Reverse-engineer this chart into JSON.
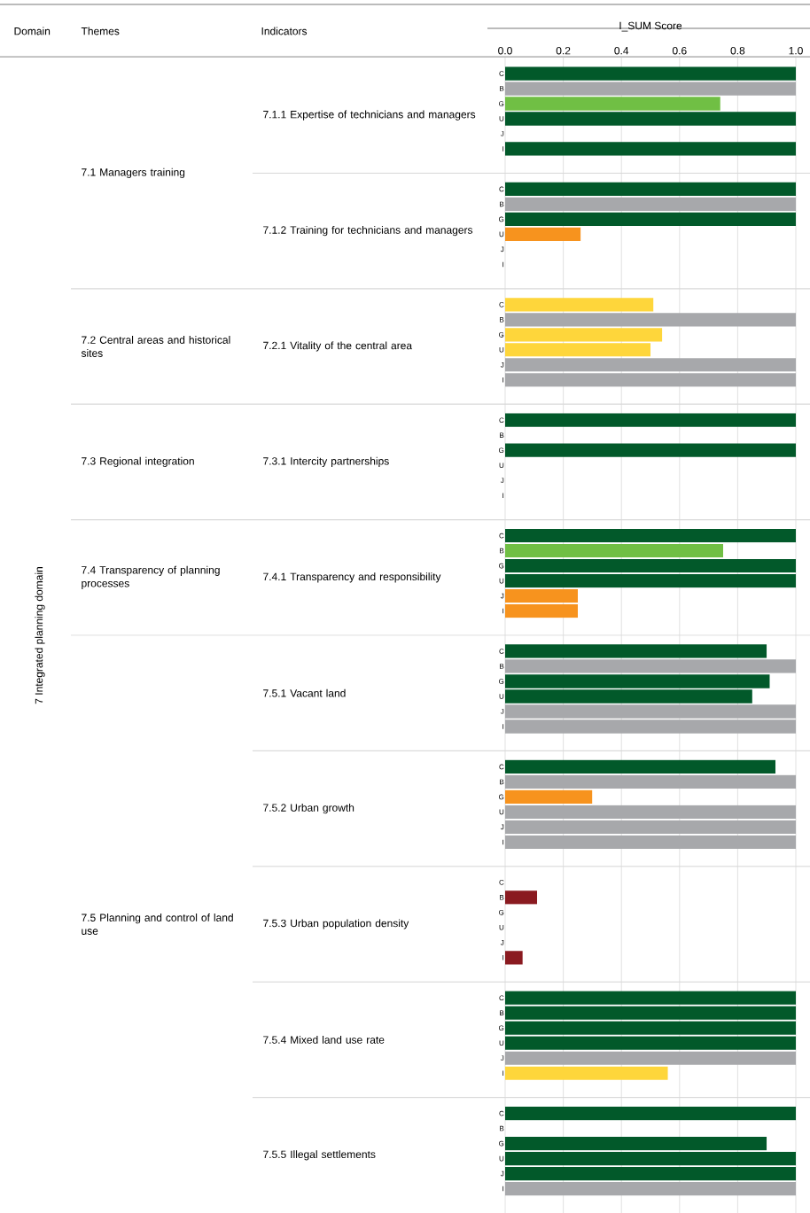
{
  "chart_data": [
    {
      "type": "bar",
      "orientation": "horizontal",
      "ylabel": "7.1.1 Expertise of technicians and managers",
      "xlabel": "I_SUM Score",
      "annotations": [
        "Domain",
        "Themes",
        "Indicators",
        "7 Integrated planning domain",
        "7.1 Managers training"
      ],
      "categories": [
        "C",
        "B",
        "G",
        "U",
        "J",
        "I"
      ],
      "values": [
        1.0,
        1.0,
        0.74,
        1.0,
        null,
        1.0
      ],
      "colors": [
        "#02592a",
        "#a7a8ab",
        "#70bf44",
        "#02592a",
        null,
        "#02592a"
      ],
      "xlim": [
        0,
        1
      ],
      "xticks": [
        {
          "value": 0,
          "label": "0.0"
        },
        0.2,
        0.4,
        0.6,
        0.8,
        {
          "value": 1,
          "label": "1.0"
        }
      ],
      "grid": "x"
    },
    {
      "type": "bar",
      "orientation": "horizontal",
      "ylabel": "7.1.2 Training for technicians and managers",
      "categories": [
        "C",
        "B",
        "G",
        "U",
        "J",
        "I"
      ],
      "values": [
        1.0,
        1.0,
        1.0,
        0.26,
        null,
        null
      ],
      "colors": [
        "#02592a",
        "#a7a8ab",
        "#02592a",
        "#f7931e",
        null,
        null
      ],
      "xlim": [
        0,
        1
      ],
      "xticks": [
        0,
        0.2,
        0.4,
        0.6,
        0.8,
        1
      ],
      "grid": "x",
      "tick_labels": "y"
    },
    {
      "type": "bar",
      "orientation": "horizontal",
      "ylabel": "7.2.1 Vitality of the central area",
      "annotations": [
        "7.2 Central areas and historical sites"
      ],
      "categories": [
        "C",
        "B",
        "G",
        "U",
        "J",
        "I"
      ],
      "values": [
        0.51,
        1.0,
        0.54,
        0.5,
        1.0,
        1.0
      ],
      "colors": [
        "#fed63b",
        "#a7a8ab",
        "#fed63b",
        "#fed63b",
        "#a7a8ab",
        "#a7a8ab"
      ],
      "xlim": [
        0,
        1
      ],
      "xticks": [
        0,
        0.2,
        0.4,
        0.6,
        0.8,
        1
      ],
      "grid": "x",
      "tick_labels": "y"
    },
    {
      "type": "bar",
      "orientation": "horizontal",
      "ylabel": "7.3.1 Intercity partnerships",
      "annotations": [
        "7.3 Regional integration"
      ],
      "categories": [
        "C",
        "B",
        "G",
        "U",
        "J",
        "I"
      ],
      "values": [
        1.0,
        null,
        1.0,
        null,
        null,
        null
      ],
      "colors": [
        "#02592a",
        null,
        "#02592a",
        null,
        null,
        null
      ],
      "xlim": [
        0,
        1
      ],
      "xticks": [
        0,
        0.2,
        0.4,
        0.6,
        0.8,
        1
      ],
      "grid": "x",
      "tick_labels": "y"
    },
    {
      "type": "bar",
      "orientation": "horizontal",
      "ylabel": "7.4.1 Transparency and responsibility",
      "annotations": [
        "7.4 Transparency of planning processes"
      ],
      "categories": [
        "C",
        "B",
        "G",
        "U",
        "J",
        "I"
      ],
      "values": [
        1.0,
        0.75,
        1.0,
        1.0,
        0.25,
        0.25
      ],
      "colors": [
        "#02592a",
        "#70bf44",
        "#02592a",
        "#02592a",
        "#f7931e",
        "#f7931e"
      ],
      "xlim": [
        0,
        1
      ],
      "xticks": [
        0,
        0.2,
        0.4,
        0.6,
        0.8,
        1
      ],
      "grid": "x",
      "tick_labels": "y"
    },
    {
      "type": "bar",
      "orientation": "horizontal",
      "ylabel": "7.5.1 Vacant land",
      "annotations": [
        "7.5 Planning and control of land use"
      ],
      "categories": [
        "C",
        "B",
        "G",
        "U",
        "J",
        "I"
      ],
      "values": [
        0.9,
        1.0,
        0.91,
        0.85,
        1.0,
        1.0
      ],
      "colors": [
        "#02592a",
        "#a7a8ab",
        "#02592a",
        "#02592a",
        "#a7a8ab",
        "#a7a8ab"
      ],
      "xlim": [
        0,
        1
      ],
      "xticks": [
        0,
        0.2,
        0.4,
        0.6,
        0.8,
        1
      ],
      "grid": "x",
      "tick_labels": "y"
    },
    {
      "type": "bar",
      "orientation": "horizontal",
      "ylabel": "7.5.2 Urban growth",
      "categories": [
        "C",
        "B",
        "G",
        "U",
        "J",
        "I"
      ],
      "values": [
        0.93,
        1.0,
        0.3,
        1.0,
        1.0,
        1.0
      ],
      "colors": [
        "#02592a",
        "#a7a8ab",
        "#f7931e",
        "#a7a8ab",
        "#a7a8ab",
        "#a7a8ab"
      ],
      "xlim": [
        0,
        1
      ],
      "xticks": [
        0,
        0.2,
        0.4,
        0.6,
        0.8,
        1
      ],
      "grid": "x",
      "tick_labels": "y"
    },
    {
      "type": "bar",
      "orientation": "horizontal",
      "ylabel": "7.5.3 Urban population density",
      "categories": [
        "C",
        "B",
        "G",
        "U",
        "J",
        "I"
      ],
      "values": [
        null,
        0.11,
        null,
        null,
        null,
        0.06
      ],
      "colors": [
        null,
        "#8a1a20",
        null,
        null,
        null,
        "#8a1a20"
      ],
      "xlim": [
        0,
        1
      ],
      "xticks": [
        0,
        0.2,
        0.4,
        0.6,
        0.8,
        1
      ],
      "grid": "x",
      "tick_labels": "y"
    },
    {
      "type": "bar",
      "orientation": "horizontal",
      "ylabel": "7.5.4 Mixed land use rate",
      "categories": [
        "C",
        "B",
        "G",
        "U",
        "J",
        "I"
      ],
      "values": [
        1.0,
        1.0,
        1.0,
        1.0,
        1.0,
        0.56
      ],
      "colors": [
        "#02592a",
        "#02592a",
        "#02592a",
        "#02592a",
        "#a7a8ab",
        "#fed63b"
      ],
      "xlim": [
        0,
        1
      ],
      "xticks": [
        0,
        0.2,
        0.4,
        0.6,
        0.8,
        1
      ],
      "grid": "x",
      "tick_labels": "y"
    },
    {
      "type": "bar",
      "orientation": "horizontal",
      "ylabel": "7.5.5 Illegal settlements",
      "categories": [
        "C",
        "B",
        "G",
        "U",
        "J",
        "I"
      ],
      "values": [
        1.0,
        null,
        0.9,
        1.0,
        1.0,
        1.0
      ],
      "colors": [
        "#02592a",
        null,
        "#02592a",
        "#02592a",
        "#02592a",
        "#a7a8ab"
      ],
      "xlim": [
        0,
        1
      ],
      "xticks": [
        0,
        0.2,
        0.4,
        0.6,
        0.8,
        1
      ],
      "grid": "x",
      "tick_labels": "y"
    }
  ]
}
